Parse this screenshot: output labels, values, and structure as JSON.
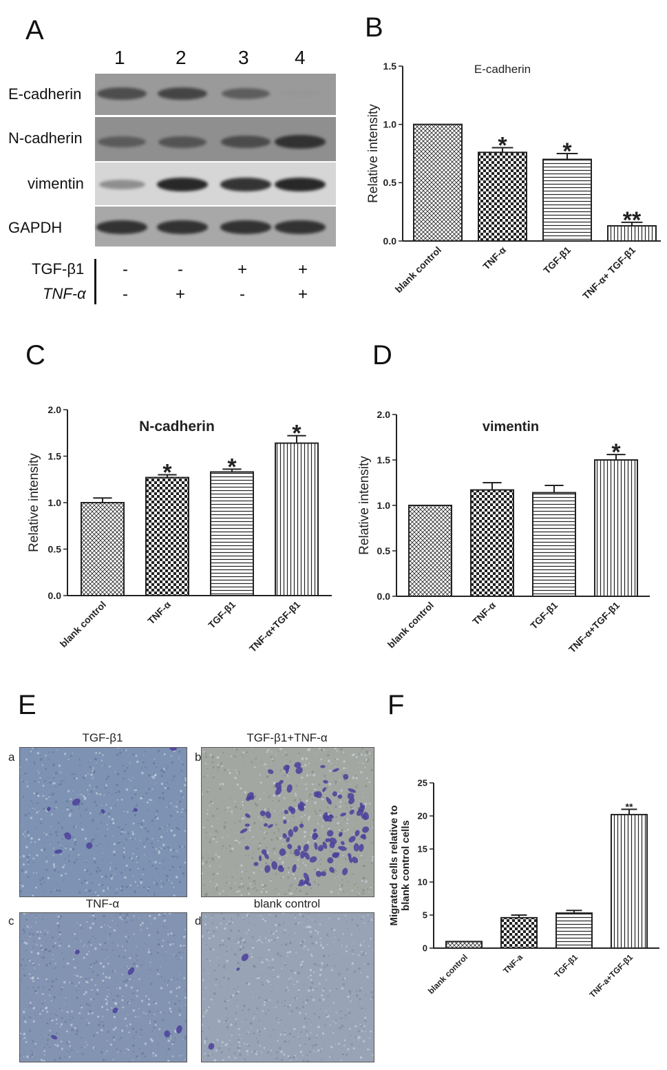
{
  "panels": {
    "A": "A",
    "B": "B",
    "C": "C",
    "D": "D",
    "E": "E",
    "F": "F"
  },
  "western_blot": {
    "lanes": [
      "1",
      "2",
      "3",
      "4"
    ],
    "bands": [
      {
        "name": "E-cadherin",
        "intensity": [
          0.8,
          0.85,
          0.7,
          0.12
        ]
      },
      {
        "name": "N-cadherin",
        "intensity": [
          0.7,
          0.75,
          0.8,
          0.95
        ]
      },
      {
        "name": "vimentin",
        "intensity": [
          0.5,
          1.0,
          0.95,
          1.0
        ]
      },
      {
        "name": "GAPDH",
        "intensity": [
          0.95,
          0.95,
          0.95,
          0.95
        ]
      }
    ],
    "treatments": [
      {
        "name": "TGF-β1",
        "signs": [
          "-",
          "-",
          "+",
          "+"
        ]
      },
      {
        "name": "TNF-α",
        "signs": [
          "-",
          "+",
          "-",
          "+"
        ]
      }
    ]
  },
  "chart_data": [
    {
      "panel": "B",
      "type": "bar",
      "title": "E-cadherin",
      "ylabel": "Relative intensity",
      "xlabel": "",
      "categories": [
        "blank control",
        "TNF-α",
        "TGF-β1",
        "TNF-α+ TGF-β1"
      ],
      "values": [
        1.0,
        0.76,
        0.7,
        0.13
      ],
      "errors": [
        0,
        0.04,
        0.05,
        0.03
      ],
      "significance": [
        "",
        "*",
        "*",
        "**"
      ],
      "ylim": [
        0,
        1.5
      ],
      "yticks": [
        "0.0",
        "0.5",
        "1.0",
        "1.5"
      ],
      "patterns": [
        "crosshatch",
        "checker",
        "hlines",
        "vlines"
      ]
    },
    {
      "panel": "C",
      "type": "bar",
      "title": "N-cadherin",
      "ylabel": "Relative intensity",
      "xlabel": "",
      "categories": [
        "blank control",
        "TNF-α",
        "TGF-β1",
        "TNF-α+TGF-β1"
      ],
      "values": [
        1.0,
        1.27,
        1.33,
        1.64
      ],
      "errors": [
        0.05,
        0.03,
        0.03,
        0.08
      ],
      "significance": [
        "",
        "*",
        "*",
        "*"
      ],
      "ylim": [
        0,
        2.0
      ],
      "yticks": [
        "0.0",
        "0.5",
        "1.0",
        "1.5",
        "2.0"
      ],
      "patterns": [
        "crosshatch",
        "checker",
        "hlines",
        "vlines"
      ]
    },
    {
      "panel": "D",
      "type": "bar",
      "title": "vimentin",
      "ylabel": "Relative intensity",
      "xlabel": "",
      "categories": [
        "blank control",
        "TNF-α",
        "TGF-β1",
        "TNF-α+TGF-β1"
      ],
      "values": [
        1.0,
        1.17,
        1.14,
        1.5
      ],
      "errors": [
        0,
        0.08,
        0.08,
        0.06
      ],
      "significance": [
        "",
        "",
        "",
        "*"
      ],
      "ylim": [
        0,
        2.0
      ],
      "yticks": [
        "0.0",
        "0.5",
        "1.0",
        "1.5",
        "2.0"
      ],
      "patterns": [
        "crosshatch",
        "checker",
        "hlines",
        "vlines"
      ]
    },
    {
      "panel": "F",
      "type": "bar",
      "title": "",
      "ylabel": "Migrated cells relative to blank control cells",
      "xlabel": "",
      "categories": [
        "blank control",
        "TNF-a",
        "TGF-β1",
        "TNF-a+TGF-β1"
      ],
      "values": [
        1.0,
        4.6,
        5.3,
        20.2
      ],
      "errors": [
        0,
        0.4,
        0.4,
        0.8
      ],
      "significance": [
        "",
        "",
        "",
        "**"
      ],
      "ylim": [
        0,
        25
      ],
      "yticks": [
        "0",
        "5",
        "10",
        "15",
        "20",
        "25"
      ],
      "patterns": [
        "crosshatch",
        "checker",
        "hlines",
        "vlines"
      ]
    }
  ],
  "micrographs": [
    {
      "letter": "a",
      "title": "TGF-β1",
      "cells": "few"
    },
    {
      "letter": "b",
      "title": "TGF-β1+TNF-α",
      "cells": "many"
    },
    {
      "letter": "c",
      "title": "TNF-α",
      "cells": "few"
    },
    {
      "letter": "d",
      "title": "blank control",
      "cells": "few"
    }
  ]
}
